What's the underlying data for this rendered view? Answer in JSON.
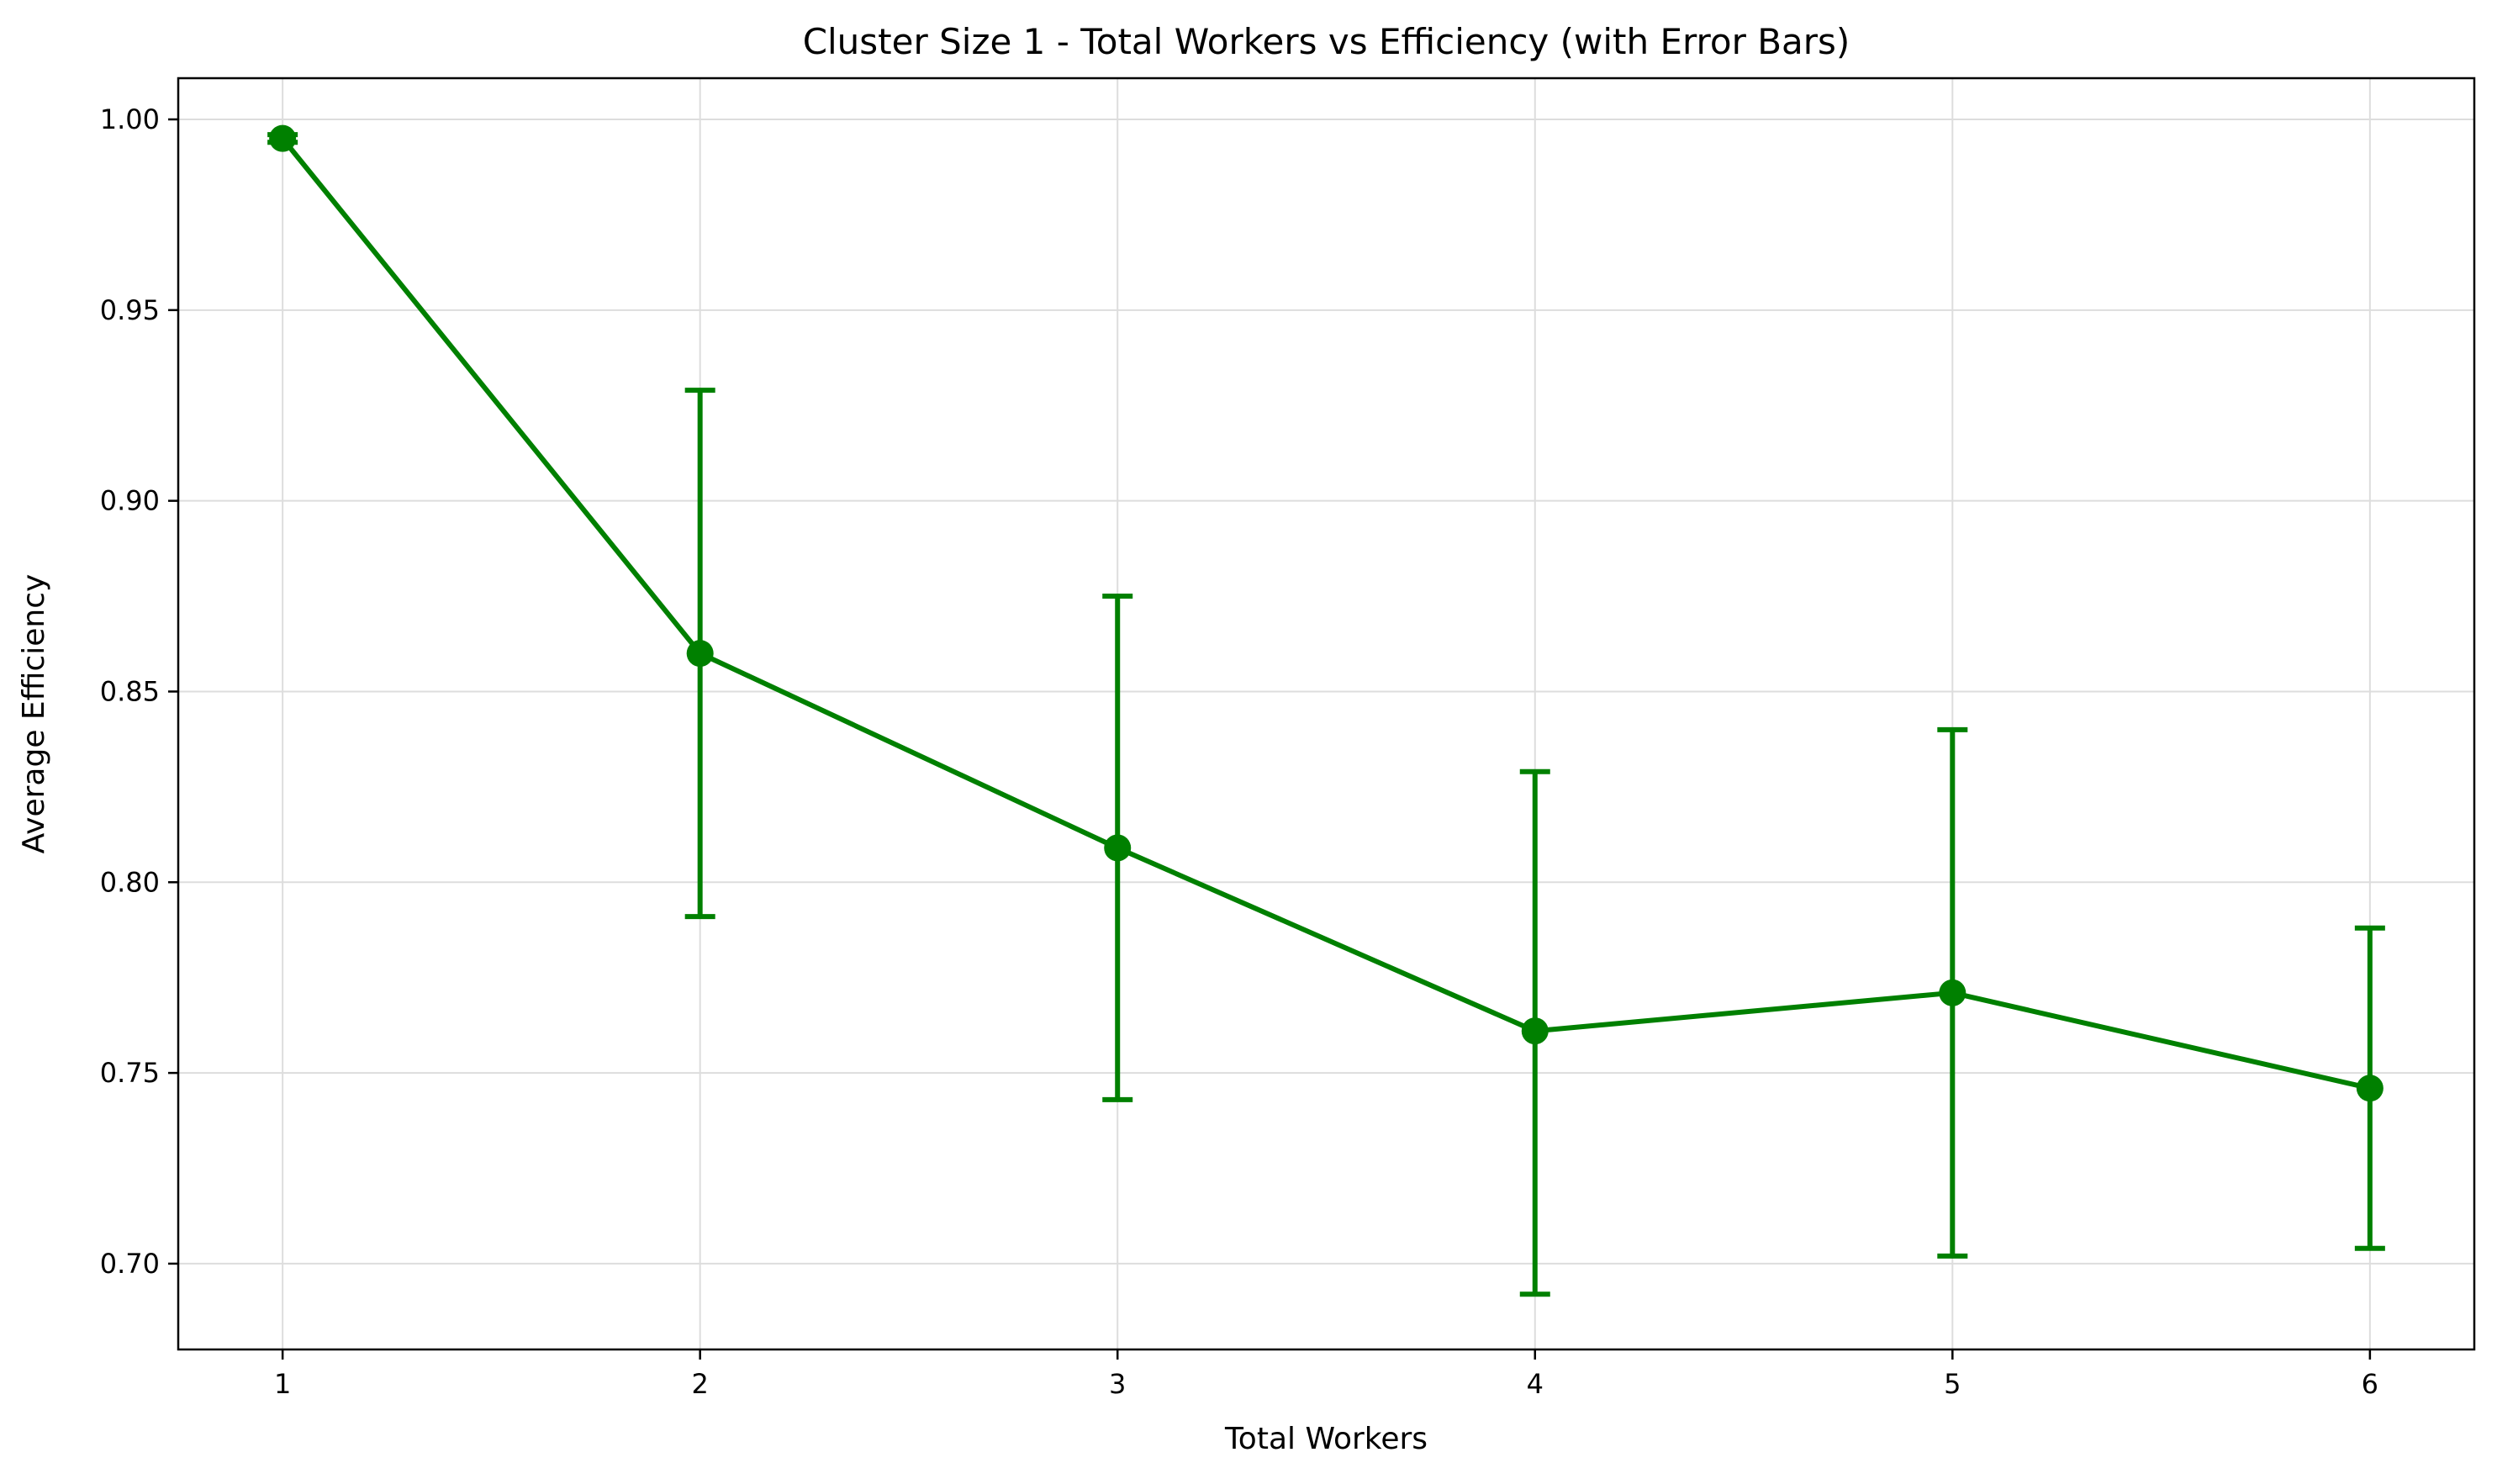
{
  "chart_data": {
    "type": "line",
    "title": "Cluster Size 1 - Total Workers vs Efficiency (with Error Bars)",
    "xlabel": "Total Workers",
    "ylabel": "Average Efficiency",
    "x": [
      1,
      2,
      3,
      4,
      5,
      6
    ],
    "series": [
      {
        "values": [
          0.995,
          0.86,
          0.809,
          0.761,
          0.771,
          0.746
        ],
        "err_low": [
          0.994,
          0.791,
          0.743,
          0.692,
          0.702,
          0.704
        ],
        "err_high": [
          0.996,
          0.929,
          0.875,
          0.829,
          0.84,
          0.788
        ],
        "color": "#008000",
        "marker": "circle"
      }
    ],
    "xlim": [
      0.75,
      6.25
    ],
    "ylim": [
      0.6775,
      1.0108
    ],
    "xticks": [
      "1",
      "2",
      "3",
      "4",
      "5",
      "6"
    ],
    "yticks": [
      "0.70",
      "0.75",
      "0.80",
      "0.85",
      "0.90",
      "0.95",
      "1.00"
    ],
    "grid": true
  }
}
